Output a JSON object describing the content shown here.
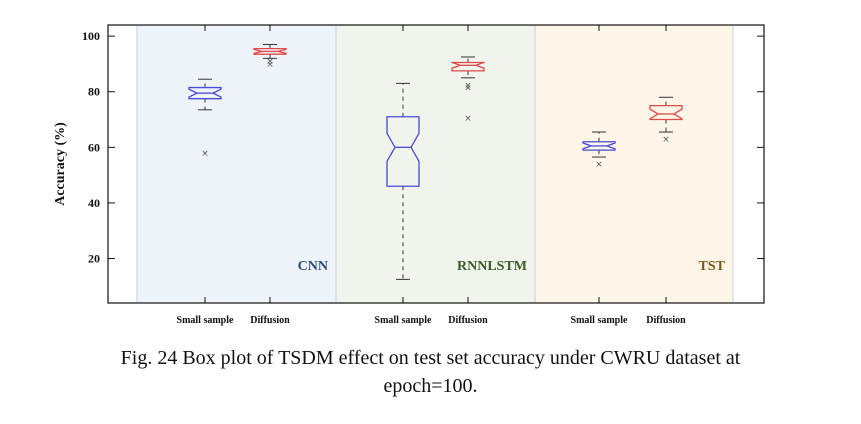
{
  "chart_data": {
    "type": "box",
    "ylabel": "Accuracy (%)",
    "ylim": [
      4,
      104
    ],
    "yticks": [
      20,
      40,
      60,
      80,
      100
    ],
    "box_color": "#4a4ad8",
    "box_color_diffusion": "#e04848",
    "panels": [
      {
        "name": "CNN",
        "bg": "#eef3f9",
        "label_color": "#2c4b7c",
        "boxes": [
          {
            "label": "Small sample",
            "whisker_low": 73.5,
            "q1": 77.5,
            "median": 79.5,
            "q3": 81.5,
            "whisker_high": 84.5,
            "outliers": [
              58
            ]
          },
          {
            "label": "Diffusion",
            "whisker_low": 92,
            "q1": 93.5,
            "median": 94.5,
            "q3": 95.5,
            "whisker_high": 97,
            "outliers": [
              90,
              91
            ]
          }
        ]
      },
      {
        "name": "RNNLSTM",
        "bg": "#f0f4ec",
        "label_color": "#3a5a2a",
        "boxes": [
          {
            "label": "Small sample",
            "whisker_low": 12.5,
            "q1": 46,
            "median": 60,
            "q3": 71,
            "whisker_high": 83,
            "outliers": []
          },
          {
            "label": "Diffusion",
            "whisker_low": 85,
            "q1": 87.5,
            "median": 89.5,
            "q3": 90.5,
            "whisker_high": 92.5,
            "outliers": [
              81.5,
              82.5,
              70.5
            ]
          }
        ]
      },
      {
        "name": "TST",
        "bg": "#fcf5e8",
        "label_color": "#7a5a14",
        "boxes": [
          {
            "label": "Small sample",
            "whisker_low": 56.5,
            "q1": 59,
            "median": 60.5,
            "q3": 62,
            "whisker_high": 65.5,
            "outliers": [
              54
            ]
          },
          {
            "label": "Diffusion",
            "whisker_low": 65.5,
            "q1": 70,
            "median": 72,
            "q3": 75,
            "whisker_high": 78,
            "outliers": [
              63
            ]
          }
        ]
      }
    ]
  },
  "caption": {
    "line1": "Fig. 24 Box plot of TSDM effect on test set accuracy under CWRU dataset at",
    "line2": "epoch=100."
  }
}
